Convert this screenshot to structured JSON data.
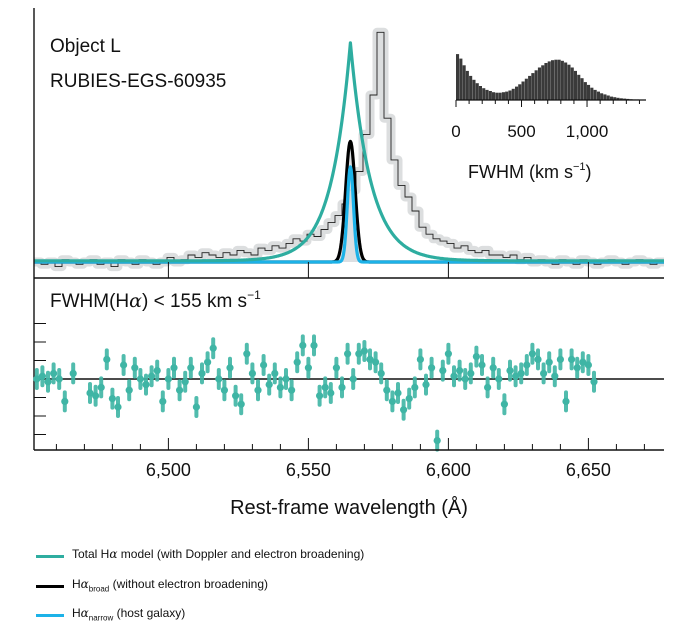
{
  "chart_data": {
    "type": "line",
    "panels": {
      "main": {
        "object_label": "Object L",
        "object_id": "RUBIES-EGS-60935",
        "xlim": [
          6452,
          6677
        ],
        "series": [
          {
            "name": "Total Hα model (with Doppler and electron broadening)",
            "color": "#2eada0",
            "model": "exponential_wings",
            "center": 6565,
            "peak": 0.94,
            "scale_left": 6.8,
            "scale_right": 7.2
          },
          {
            "name": "Hα_broad (without electron broadening)",
            "color": "#000000",
            "model": "gaussian",
            "center": 6565,
            "peak": 0.52,
            "sigma": 1.7
          },
          {
            "name": "Hα_narrow (host galaxy)",
            "color": "#1cb2e8",
            "model": "gaussian",
            "center": 6565,
            "peak": 0.41,
            "sigma": 1.1
          }
        ],
        "data_step": {
          "start": 6452,
          "bin_width": 2.5,
          "values": [
            0.0,
            -0.01,
            0.0,
            -0.02,
            0.01,
            0.0,
            -0.01,
            0.0,
            0.01,
            -0.01,
            0.0,
            -0.02,
            0.01,
            0.0,
            -0.01,
            0.01,
            0.0,
            -0.01,
            0.0,
            0.02,
            0.0,
            0.01,
            0.03,
            0.02,
            0.04,
            0.03,
            0.02,
            0.04,
            0.03,
            0.05,
            0.04,
            0.03,
            0.06,
            0.05,
            0.07,
            0.06,
            0.08,
            0.1,
            0.09,
            0.12,
            0.11,
            0.14,
            0.17,
            0.2,
            0.25,
            0.31,
            0.39,
            0.55,
            0.72,
            0.99,
            0.62,
            0.44,
            0.33,
            0.28,
            0.22,
            0.15,
            0.12,
            0.1,
            0.09,
            0.08,
            0.06,
            0.07,
            0.05,
            0.04,
            0.05,
            0.03,
            0.03,
            0.02,
            0.03,
            0.01,
            0.02,
            0.0,
            0.01,
            0.0,
            -0.01,
            0.01,
            0.0,
            -0.01,
            0.01,
            0.0,
            -0.01,
            0.0,
            0.01,
            0.0,
            -0.01,
            0.0,
            0.01,
            0.0,
            -0.01,
            0.0
          ]
        }
      },
      "inset": {
        "xlabel": "FWHM (km s",
        "xlabel_sup": "−1",
        "xlabel_end": ")",
        "ticks": [
          0,
          500,
          1000
        ],
        "tick_labels": [
          "0",
          "500",
          "1,000"
        ],
        "xlim": [
          0,
          1450
        ],
        "bins": {
          "start": 0,
          "width": 25,
          "values": [
            0.82,
            0.74,
            0.62,
            0.52,
            0.43,
            0.36,
            0.3,
            0.25,
            0.21,
            0.18,
            0.16,
            0.14,
            0.13,
            0.13,
            0.14,
            0.15,
            0.17,
            0.2,
            0.24,
            0.28,
            0.33,
            0.38,
            0.43,
            0.48,
            0.53,
            0.58,
            0.62,
            0.66,
            0.69,
            0.71,
            0.72,
            0.72,
            0.7,
            0.67,
            0.63,
            0.58,
            0.52,
            0.45,
            0.39,
            0.32,
            0.27,
            0.22,
            0.18,
            0.15,
            0.12,
            0.1,
            0.08,
            0.06,
            0.05,
            0.04,
            0.03,
            0.025,
            0.02,
            0.015,
            0.01,
            0.01,
            0.008,
            0.006
          ]
        }
      },
      "residual": {
        "annotation_prefix": "FWHM(H",
        "annotation_alpha": "α",
        "annotation_mid": ") < 155 km s",
        "annotation_sup": "−1",
        "color": "#3fb5a5",
        "ylim": [
          -2.4,
          2.4
        ],
        "points": [
          {
            "x": 6453,
            "y": 0.0
          },
          {
            "x": 6455,
            "y": 0.1
          },
          {
            "x": 6457,
            "y": -0.1
          },
          {
            "x": 6459,
            "y": 0.2
          },
          {
            "x": 6461,
            "y": 0.0
          },
          {
            "x": 6463,
            "y": -0.8
          },
          {
            "x": 6466,
            "y": 0.2
          },
          {
            "x": 6472,
            "y": -0.5
          },
          {
            "x": 6474,
            "y": -0.6
          },
          {
            "x": 6476,
            "y": -0.3
          },
          {
            "x": 6478,
            "y": 0.7
          },
          {
            "x": 6480,
            "y": -0.7
          },
          {
            "x": 6482,
            "y": -1.0
          },
          {
            "x": 6484,
            "y": 0.5
          },
          {
            "x": 6486,
            "y": -0.4
          },
          {
            "x": 6488,
            "y": 0.4
          },
          {
            "x": 6490,
            "y": 0.0
          },
          {
            "x": 6492,
            "y": -0.2
          },
          {
            "x": 6494,
            "y": 0.1
          },
          {
            "x": 6496,
            "y": 0.3
          },
          {
            "x": 6498,
            "y": -0.8
          },
          {
            "x": 6500,
            "y": 0.0
          },
          {
            "x": 6502,
            "y": 0.4
          },
          {
            "x": 6504,
            "y": -0.4
          },
          {
            "x": 6506,
            "y": -0.1
          },
          {
            "x": 6508,
            "y": 0.4
          },
          {
            "x": 6510,
            "y": -1.0
          },
          {
            "x": 6512,
            "y": 0.2
          },
          {
            "x": 6514,
            "y": 0.6
          },
          {
            "x": 6516,
            "y": 1.1
          },
          {
            "x": 6518,
            "y": 0.0
          },
          {
            "x": 6520,
            "y": -0.4
          },
          {
            "x": 6522,
            "y": 0.4
          },
          {
            "x": 6524,
            "y": -0.6
          },
          {
            "x": 6526,
            "y": -0.9
          },
          {
            "x": 6528,
            "y": 0.9
          },
          {
            "x": 6530,
            "y": 0.2
          },
          {
            "x": 6532,
            "y": -0.4
          },
          {
            "x": 6534,
            "y": 0.5
          },
          {
            "x": 6536,
            "y": -0.2
          },
          {
            "x": 6538,
            "y": 0.2
          },
          {
            "x": 6540,
            "y": -0.3
          },
          {
            "x": 6542,
            "y": 0.0
          },
          {
            "x": 6544,
            "y": -0.4
          },
          {
            "x": 6546,
            "y": 0.6
          },
          {
            "x": 6548,
            "y": 1.2
          },
          {
            "x": 6550,
            "y": 0.4
          },
          {
            "x": 6552,
            "y": 1.2
          },
          {
            "x": 6554,
            "y": -0.6
          },
          {
            "x": 6556,
            "y": -0.3
          },
          {
            "x": 6558,
            "y": -0.5
          },
          {
            "x": 6560,
            "y": 0.4
          },
          {
            "x": 6562,
            "y": -0.3
          },
          {
            "x": 6564,
            "y": 0.9
          },
          {
            "x": 6566,
            "y": 0.0
          },
          {
            "x": 6568,
            "y": 0.9
          },
          {
            "x": 6570,
            "y": 1.0
          },
          {
            "x": 6572,
            "y": 0.7
          },
          {
            "x": 6574,
            "y": 0.6
          },
          {
            "x": 6576,
            "y": 0.2
          },
          {
            "x": 6578,
            "y": -0.4
          },
          {
            "x": 6580,
            "y": -0.8
          },
          {
            "x": 6582,
            "y": -0.5
          },
          {
            "x": 6584,
            "y": -1.1
          },
          {
            "x": 6586,
            "y": -0.7
          },
          {
            "x": 6588,
            "y": -0.3
          },
          {
            "x": 6590,
            "y": 0.7
          },
          {
            "x": 6592,
            "y": -0.2
          },
          {
            "x": 6594,
            "y": 0.4
          },
          {
            "x": 6596,
            "y": -2.2
          },
          {
            "x": 6598,
            "y": 0.3
          },
          {
            "x": 6600,
            "y": 0.9
          },
          {
            "x": 6602,
            "y": 0.1
          },
          {
            "x": 6604,
            "y": 0.3
          },
          {
            "x": 6606,
            "y": 0.0
          },
          {
            "x": 6608,
            "y": 0.2
          },
          {
            "x": 6610,
            "y": 0.8
          },
          {
            "x": 6612,
            "y": 0.5
          },
          {
            "x": 6614,
            "y": -0.3
          },
          {
            "x": 6616,
            "y": 0.4
          },
          {
            "x": 6618,
            "y": 0.0
          },
          {
            "x": 6620,
            "y": -0.9
          },
          {
            "x": 6622,
            "y": 0.3
          },
          {
            "x": 6624,
            "y": 0.1
          },
          {
            "x": 6626,
            "y": 0.2
          },
          {
            "x": 6628,
            "y": 0.5
          },
          {
            "x": 6630,
            "y": 0.9
          },
          {
            "x": 6632,
            "y": 0.7
          },
          {
            "x": 6634,
            "y": 0.2
          },
          {
            "x": 6636,
            "y": 0.6
          },
          {
            "x": 6638,
            "y": 0.1
          },
          {
            "x": 6640,
            "y": 0.7
          },
          {
            "x": 6642,
            "y": -0.8
          },
          {
            "x": 6644,
            "y": 0.7
          },
          {
            "x": 6646,
            "y": 0.4
          },
          {
            "x": 6648,
            "y": 0.6
          },
          {
            "x": 6650,
            "y": 0.5
          },
          {
            "x": 6652,
            "y": -0.1
          }
        ]
      }
    },
    "xaxis": {
      "ticks": [
        6500,
        6550,
        6600,
        6650
      ],
      "tick_labels": [
        "6,500",
        "6,550",
        "6,600",
        "6,650"
      ],
      "label": "Rest-frame wavelength (Å)"
    },
    "colors": {
      "axis": "#111111",
      "data_band": "#c9ccce",
      "inset_bar": "#3a3a3a",
      "grid": "#bfc2c4"
    }
  },
  "legend": [
    {
      "pre": "Total H",
      "alpha": "α",
      "sub": "",
      "post": " model (with Doppler and electron broadening)",
      "color": "#2eada0"
    },
    {
      "pre": "H",
      "alpha": "α",
      "sub": "broad",
      "post": " (without electron broadening)",
      "color": "#000000"
    },
    {
      "pre": "H",
      "alpha": "α",
      "sub": "narrow",
      "post": " (host galaxy)",
      "color": "#1cb2e8"
    }
  ]
}
